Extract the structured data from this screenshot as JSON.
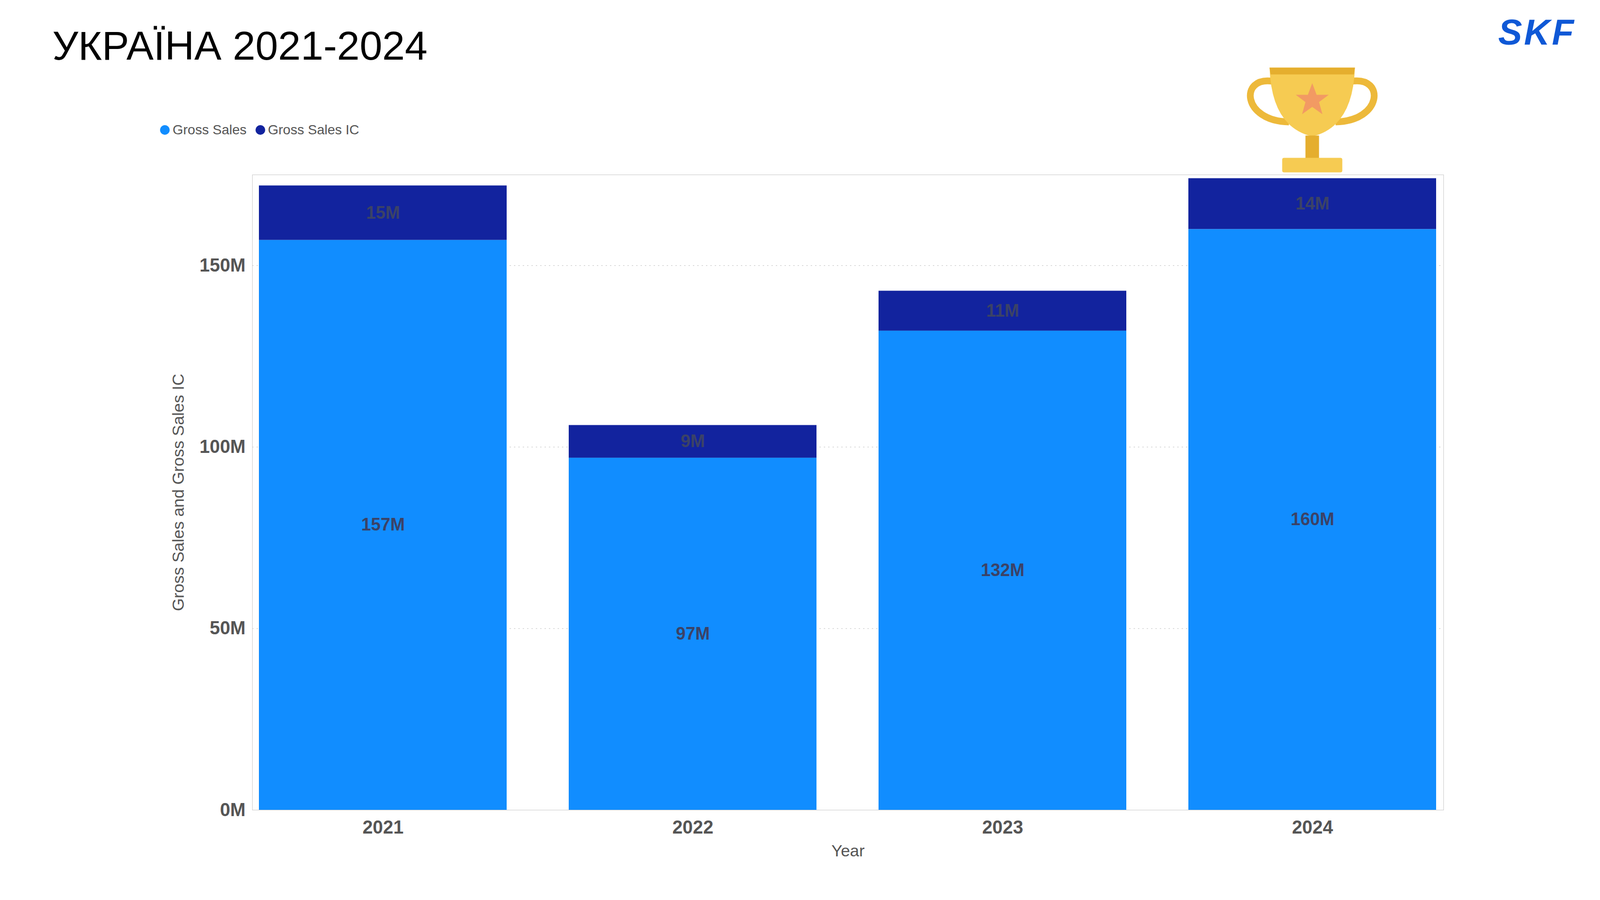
{
  "chart_data": {
    "type": "bar",
    "title": "УКРАЇНА 2021-2024",
    "categories": [
      "2021",
      "2022",
      "2023",
      "2024"
    ],
    "series": [
      {
        "name": "Gross Sales",
        "color": "#118DFF",
        "values": [
          157,
          97,
          132,
          160
        ],
        "value_labels": [
          "157M",
          "97M",
          "132M",
          "160M"
        ]
      },
      {
        "name": "Gross Sales IC",
        "color": "#12239E",
        "values": [
          15,
          9,
          11,
          14
        ],
        "value_labels": [
          "15M",
          "9M",
          "11M",
          "14M"
        ]
      }
    ],
    "x_label": "Year",
    "y_label": "Gross Sales and Gross Sales IC",
    "ylim": [
      0,
      175
    ],
    "yticks": [
      {
        "value": 0,
        "label": "0M"
      },
      {
        "value": 50,
        "label": "50M"
      },
      {
        "value": 100,
        "label": "100M"
      },
      {
        "value": 150,
        "label": "150M"
      }
    ],
    "stacked": true,
    "data_labels": true,
    "grid": true,
    "legend": "top-left"
  },
  "logo": "SKF"
}
